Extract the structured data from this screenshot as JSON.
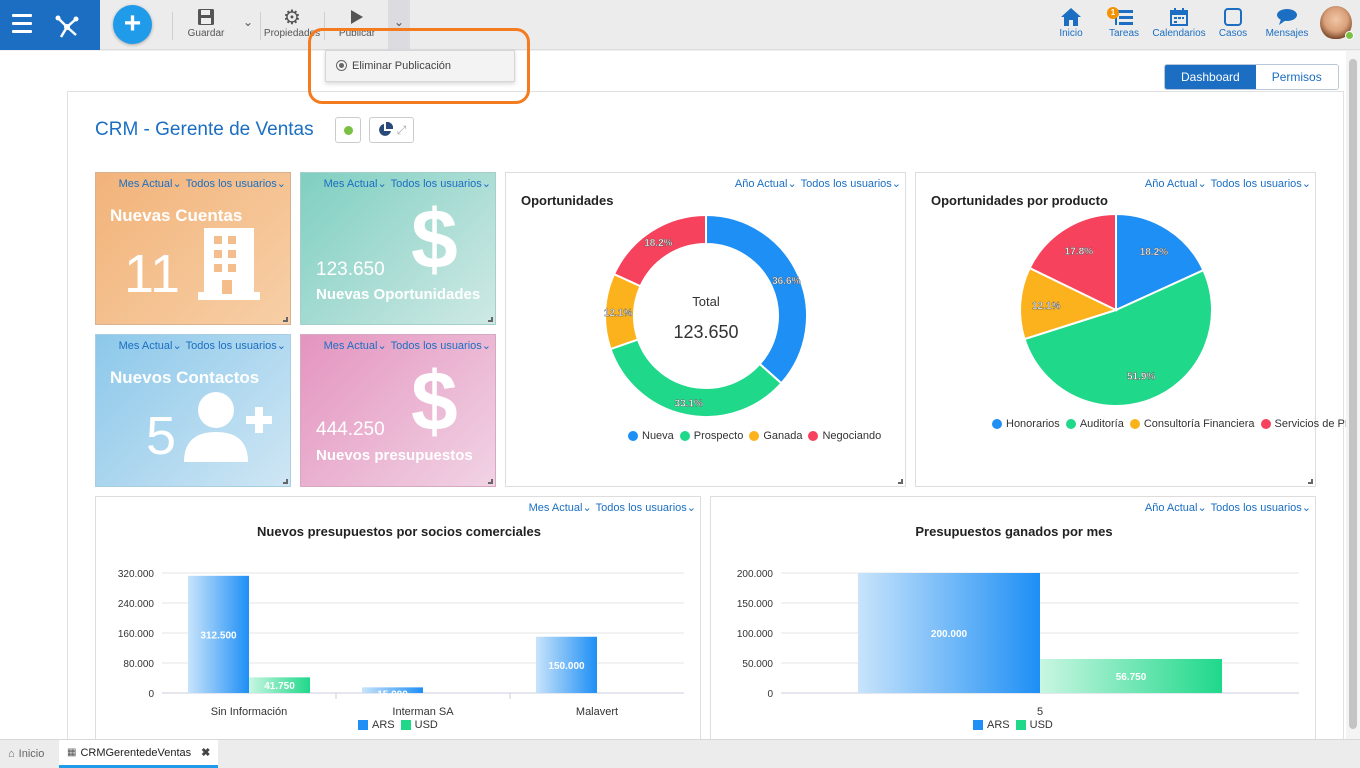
{
  "toolbar": {
    "save_label": "Guardar",
    "properties_label": "Propiedades",
    "publish_label": "Publicar"
  },
  "publish_menu": {
    "item_label": "Eliminar Publicación"
  },
  "nav": {
    "home": "Inicio",
    "tasks": "Tareas",
    "tasks_badge": "1",
    "calendars": "Calendarios",
    "cases": "Casos",
    "messages": "Mensajes"
  },
  "view_tabs": {
    "dashboard": "Dashboard",
    "permissions": "Permisos"
  },
  "page": {
    "title": "CRM - Gerente de Ventas"
  },
  "filters": {
    "month": "Mes Actual",
    "year": "Año Actual",
    "users": "Todos los usuarios"
  },
  "tiles": {
    "new_accounts": {
      "label": "Nuevas Cuentas",
      "value": "11"
    },
    "new_opportunities": {
      "label": "Nuevas Oportunidades",
      "value": "123.650"
    },
    "new_contacts": {
      "label": "Nuevos Contactos",
      "value": "5"
    },
    "new_budgets": {
      "label": "Nuevos presupuestos",
      "value": "444.250"
    }
  },
  "colors": {
    "blue": "#1e8ff5",
    "green": "#1fd88a",
    "yellow": "#fbb21d",
    "red": "#f7425e",
    "accent": "#1b6ec2"
  },
  "chart_data": [
    {
      "type": "pie",
      "title": "Oportunidades",
      "center_label": "Total",
      "center_value": "123.650",
      "categories": [
        "Nueva",
        "Prospecto",
        "Ganada",
        "Negociando"
      ],
      "values": [
        36.6,
        33.1,
        12.1,
        18.2
      ],
      "labels": [
        "36.6%",
        "33.1%",
        "12.1%",
        "18.2%"
      ]
    },
    {
      "type": "pie",
      "title": "Oportunidades por producto",
      "categories": [
        "Honorarios",
        "Auditoría",
        "Consultoría Financiera",
        "Servicios de PMO"
      ],
      "values": [
        18.2,
        51.9,
        12.1,
        17.8
      ],
      "labels": [
        "18.2%",
        "51.9%",
        "12.1%",
        "17.8%"
      ]
    },
    {
      "type": "bar",
      "title": "Nuevos presupuestos por socios comerciales",
      "categories": [
        "Sin Información",
        "Interman SA",
        "Malavert"
      ],
      "series": [
        {
          "name": "ARS",
          "values": [
            312500,
            15000,
            150000
          ],
          "labels": [
            "312.500",
            "15.000",
            "150.000"
          ]
        },
        {
          "name": "USD",
          "values": [
            41750,
            0,
            0
          ],
          "labels": [
            "41.750",
            "",
            ""
          ]
        }
      ],
      "yticks": [
        "0",
        "80.000",
        "160.000",
        "240.000",
        "320.000"
      ],
      "ylim": [
        0,
        320000
      ]
    },
    {
      "type": "bar",
      "title": "Presupuestos ganados por mes",
      "categories": [
        "5"
      ],
      "series": [
        {
          "name": "ARS",
          "values": [
            200000
          ],
          "labels": [
            "200.000"
          ]
        },
        {
          "name": "USD",
          "values": [
            56750
          ],
          "labels": [
            "56.750"
          ]
        }
      ],
      "yticks": [
        "0",
        "50.000",
        "100.000",
        "150.000",
        "200.000"
      ],
      "ylim": [
        0,
        200000
      ]
    }
  ],
  "footer": {
    "home_tab": "Inicio",
    "active_tab": "CRMGerentedeVentas"
  }
}
